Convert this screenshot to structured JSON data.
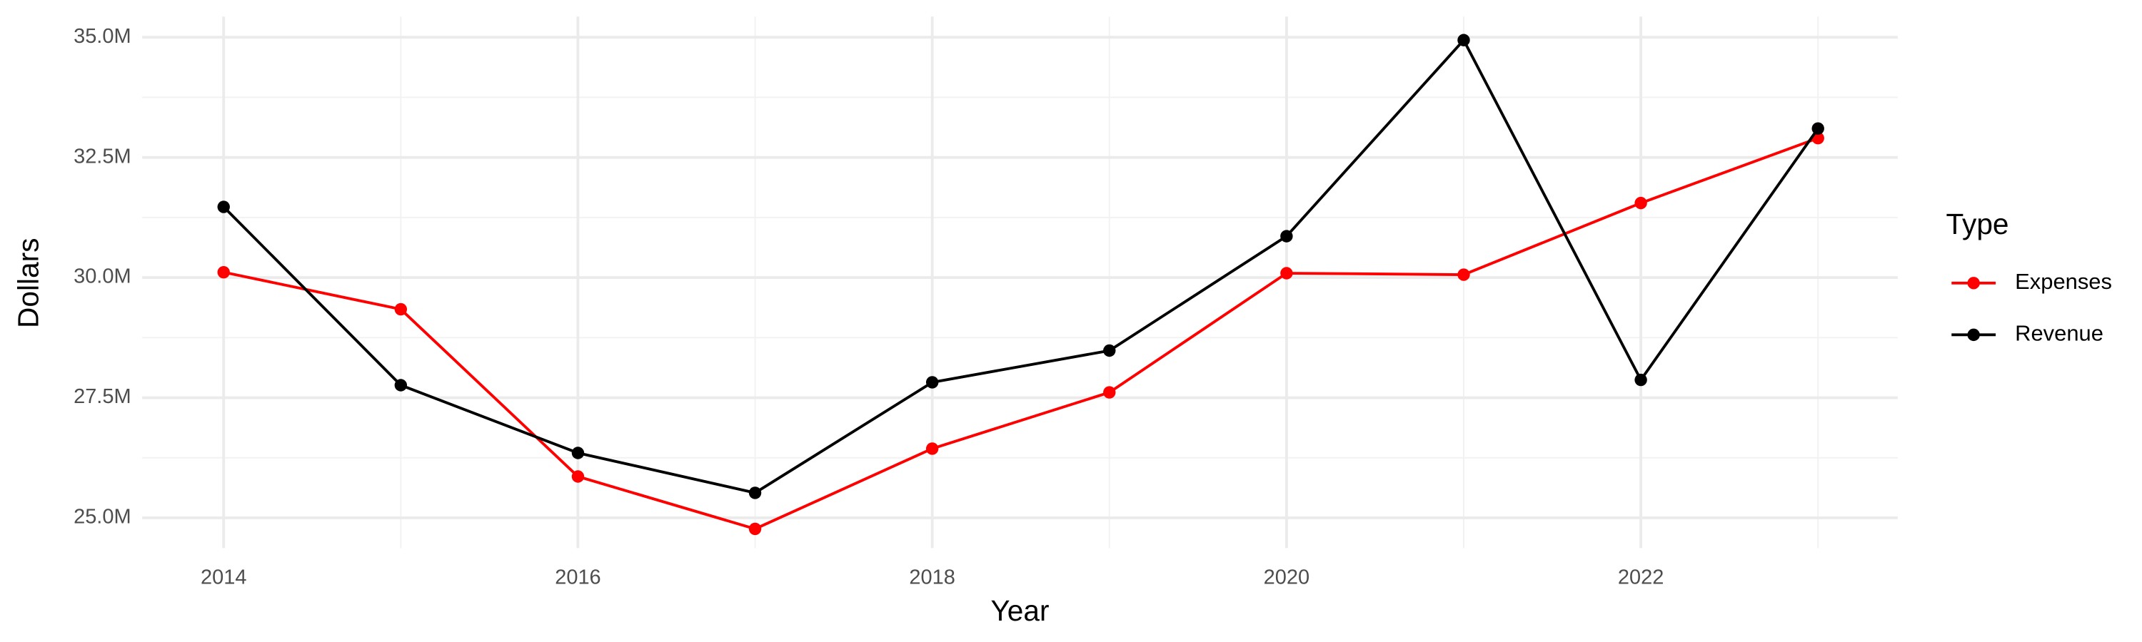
{
  "chart_data": {
    "type": "line",
    "x_label": "Year",
    "y_label": "Dollars",
    "legend_title": "Type",
    "legend_position": "right",
    "grid": true,
    "x": [
      2014,
      2015,
      2016,
      2017,
      2018,
      2019,
      2020,
      2021,
      2022,
      2023
    ],
    "xlim": [
      2013.54,
      2023.45
    ],
    "xticks": [
      2014,
      2016,
      2018,
      2020,
      2022
    ],
    "ylim": [
      24370000,
      35430000
    ],
    "yticks": [
      {
        "value": 25000000,
        "label": "25.0M"
      },
      {
        "value": 27500000,
        "label": "27.5M"
      },
      {
        "value": 30000000,
        "label": "30.0M"
      },
      {
        "value": 32500000,
        "label": "32.5M"
      },
      {
        "value": 35000000,
        "label": "35.0M"
      }
    ],
    "series": [
      {
        "name": "Expenses",
        "color": "#ff0000",
        "values": [
          30110000,
          29340000,
          25860000,
          24770000,
          26440000,
          27610000,
          30090000,
          30060000,
          31550000,
          32900000
        ]
      },
      {
        "name": "Revenue",
        "color": "#000000",
        "values": [
          31470000,
          27760000,
          26350000,
          25520000,
          27820000,
          28480000,
          30860000,
          34940000,
          27870000,
          33100000
        ]
      }
    ]
  }
}
